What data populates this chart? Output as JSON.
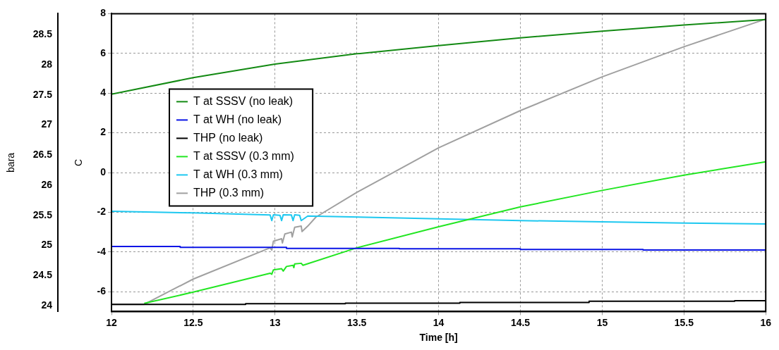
{
  "chart_data": {
    "type": "line",
    "xlabel": "Time [h]",
    "ylabel": "C",
    "y2label": "bara",
    "xlim": [
      12,
      16
    ],
    "xticks": [
      12,
      12.5,
      13,
      13.5,
      14,
      14.5,
      15,
      15.5,
      16
    ],
    "ylim": [
      -7,
      8
    ],
    "yticks": [
      -6,
      -4,
      -2,
      0,
      2,
      4,
      6,
      8
    ],
    "y2lim": [
      23.9,
      28.85
    ],
    "y2ticks": [
      24,
      24.5,
      25,
      25.5,
      26,
      26.5,
      27,
      27.5,
      28,
      28.5
    ],
    "grid": true,
    "legend": "top left",
    "marker": "none",
    "line_style": "solid",
    "series": [
      {
        "name": "T at SSSV (no leak)",
        "color": "#138a13",
        "x": [
          12,
          12.5,
          13,
          13.5,
          14,
          14.5,
          15,
          15.5,
          16
        ],
        "values": [
          3.94,
          4.78,
          5.46,
          5.98,
          6.39,
          6.78,
          7.12,
          7.43,
          7.7
        ]
      },
      {
        "name": "T at WH (no leak)",
        "color": "#0a14e6",
        "x": [
          12,
          12.42,
          12.42,
          13.07,
          13.07,
          13.76,
          13.76,
          14.5,
          14.5,
          15.25,
          15.25,
          16
        ],
        "values": [
          -3.72,
          -3.72,
          -3.77,
          -3.77,
          -3.82,
          -3.82,
          -3.84,
          -3.84,
          -3.87,
          -3.87,
          -3.9,
          -3.9
        ]
      },
      {
        "name": "THP (no leak)",
        "color": "#000000",
        "axis": "y2",
        "x": [
          12,
          12.34,
          12.34,
          12.82,
          12.82,
          13.43,
          13.43,
          14.13,
          14.13,
          14.92,
          14.92,
          15.81,
          15.81,
          16
        ],
        "values": [
          24.02,
          24.02,
          24.02,
          24.02,
          24.03,
          24.03,
          24.04,
          24.04,
          24.05,
          24.05,
          24.07,
          24.07,
          24.08,
          24.08
        ]
      },
      {
        "name": "T at SSSV (0.3 mm)",
        "color": "#22e622",
        "x": [
          12.2,
          12.5,
          12.97,
          12.98,
          12.99,
          13.04,
          13.05,
          13.07,
          13.11,
          13.115,
          13.12,
          13.16,
          13.17,
          13.5,
          14,
          14.5,
          15,
          15.5,
          16
        ],
        "values": [
          -6.59,
          -6.02,
          -5.07,
          -5.12,
          -4.9,
          -4.84,
          -4.96,
          -4.73,
          -4.67,
          -4.79,
          -4.6,
          -4.57,
          -4.67,
          -3.79,
          -2.73,
          -1.73,
          -0.9,
          -0.13,
          0.54
        ]
      },
      {
        "name": "T at WH (0.3 mm)",
        "color": "#1ec8f0",
        "x": [
          12,
          12.21,
          12.5,
          12.97,
          12.98,
          12.99,
          13.03,
          13.04,
          13.05,
          13.1,
          13.11,
          13.12,
          13.15,
          13.16,
          13.2,
          14,
          14.5,
          15,
          15.5,
          16
        ],
        "values": [
          -1.95,
          -1.99,
          -2.03,
          -2.14,
          -2.42,
          -2.13,
          -2.15,
          -2.42,
          -2.13,
          -2.14,
          -2.42,
          -2.13,
          -2.15,
          -2.42,
          -2.19,
          -2.33,
          -2.42,
          -2.48,
          -2.54,
          -2.59
        ]
      },
      {
        "name": "THP (0.3 mm)",
        "color": "#a0a0a0",
        "axis": "y2",
        "x": [
          12,
          12.2,
          12.5,
          12.97,
          12.98,
          12.99,
          13.04,
          13.045,
          13.06,
          13.1,
          13.105,
          13.12,
          13.16,
          13.165,
          13.2,
          13.25,
          13.5,
          14,
          14.5,
          15,
          15.5,
          16
        ],
        "values": [
          24.02,
          24.02,
          24.44,
          24.96,
          24.92,
          25.07,
          25.11,
          25.04,
          25.19,
          25.22,
          25.14,
          25.3,
          25.32,
          25.23,
          25.32,
          25.47,
          25.88,
          26.62,
          27.24,
          27.8,
          28.3,
          28.76
        ]
      }
    ]
  }
}
